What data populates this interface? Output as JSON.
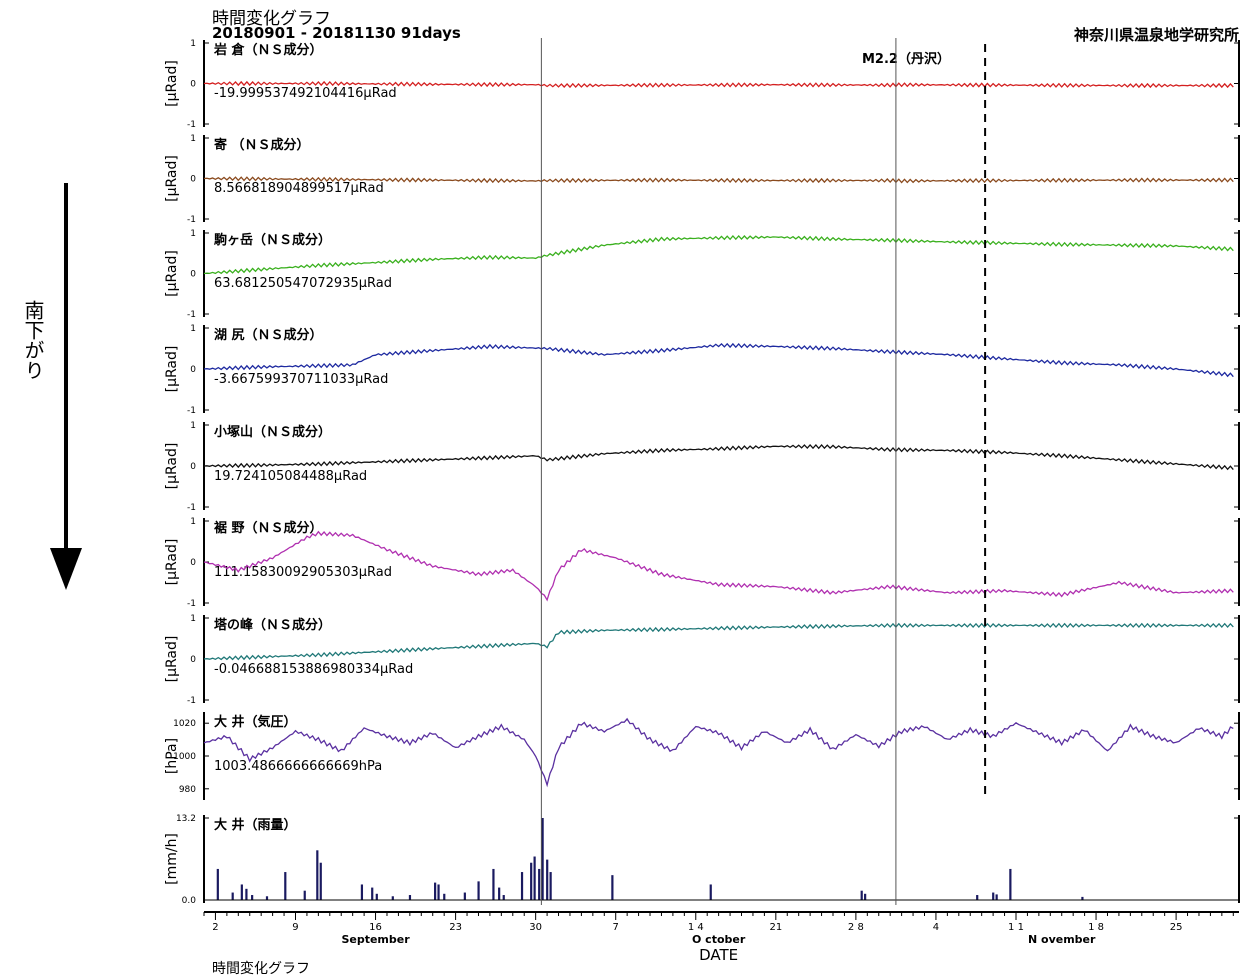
{
  "header": {
    "title": "時間変化グラフ",
    "period": "20180901 - 20181130 91days",
    "institution": "神奈川県温泉地学研究所",
    "event_label": "M2.2（丹沢）",
    "side_label": "南下がり",
    "footer_partial": "時間変化グラフ"
  },
  "chart_data": [
    {
      "type": "line",
      "title": "岩 倉（ＮＳ成分）",
      "ylabel": "[μRad]",
      "ylim": [
        -1,
        1
      ],
      "yticks": [
        "1",
        "0",
        "-1"
      ],
      "offset_label": "-19.999537492104416μRad",
      "color": "#d42020",
      "x": [
        0,
        10,
        20,
        29,
        30,
        40,
        50,
        60,
        61,
        70,
        80,
        90
      ],
      "values": [
        0,
        0,
        -0.02,
        -0.03,
        -0.05,
        -0.04,
        -0.03,
        -0.04,
        -0.03,
        -0.04,
        -0.05,
        -0.05
      ]
    },
    {
      "type": "line",
      "title": "寄 （ＮＳ成分）",
      "ylabel": "[μRad]",
      "ylim": [
        -1,
        1
      ],
      "yticks": [
        "1",
        "0",
        "-1"
      ],
      "offset_label": "8.566818904899517μRad",
      "color": "#8a4a1e",
      "x": [
        0,
        10,
        20,
        29,
        30,
        40,
        50,
        60,
        61,
        70,
        80,
        90
      ],
      "values": [
        0,
        -0.02,
        -0.04,
        -0.06,
        -0.05,
        -0.04,
        -0.05,
        -0.05,
        -0.06,
        -0.05,
        -0.04,
        -0.04
      ]
    },
    {
      "type": "line",
      "title": "駒ヶ岳（ＮＳ成分）",
      "ylabel": "[μRad]",
      "ylim": [
        -1,
        1
      ],
      "yticks": [
        "1",
        "0",
        "-1"
      ],
      "offset_label": "63.681250547072935μRad",
      "color": "#3ab01e",
      "x": [
        0,
        5,
        10,
        15,
        20,
        25,
        29,
        30,
        35,
        40,
        45,
        50,
        55,
        60,
        65,
        70,
        75,
        80,
        85,
        90
      ],
      "values": [
        0,
        0.1,
        0.2,
        0.27,
        0.35,
        0.4,
        0.38,
        0.45,
        0.7,
        0.85,
        0.88,
        0.9,
        0.85,
        0.82,
        0.78,
        0.75,
        0.72,
        0.7,
        0.68,
        0.6
      ]
    },
    {
      "type": "line",
      "title": "湖 尻（ＮＳ成分）",
      "ylabel": "[μRad]",
      "ylim": [
        -1,
        1
      ],
      "yticks": [
        "1",
        "0",
        "-1"
      ],
      "offset_label": "-3.667599370711033μRad",
      "color": "#1e2aa0",
      "x": [
        0,
        5,
        10,
        13,
        15,
        20,
        25,
        30,
        35,
        40,
        45,
        50,
        55,
        60,
        65,
        70,
        75,
        80,
        85,
        90
      ],
      "values": [
        0,
        0.05,
        0.08,
        0.1,
        0.35,
        0.45,
        0.55,
        0.5,
        0.35,
        0.45,
        0.58,
        0.55,
        0.5,
        0.42,
        0.35,
        0.25,
        0.15,
        0.1,
        0.0,
        -0.15
      ]
    },
    {
      "type": "line",
      "title": "小塚山（ＮＳ成分）",
      "ylabel": "[μRad]",
      "ylim": [
        -1,
        1
      ],
      "yticks": [
        "1",
        "0",
        "-1"
      ],
      "offset_label": "19.724105084488μRad",
      "color": "#111111",
      "x": [
        0,
        5,
        10,
        15,
        20,
        25,
        29,
        30,
        35,
        40,
        45,
        50,
        55,
        60,
        65,
        70,
        75,
        80,
        85,
        90
      ],
      "values": [
        0,
        0.02,
        0.05,
        0.1,
        0.15,
        0.2,
        0.25,
        0.15,
        0.3,
        0.38,
        0.42,
        0.48,
        0.47,
        0.4,
        0.38,
        0.33,
        0.25,
        0.15,
        0.05,
        -0.05
      ]
    },
    {
      "type": "line",
      "title": "裾 野（ＮＳ成分）",
      "ylabel": "[μRad]",
      "ylim": [
        -1,
        1
      ],
      "yticks": [
        "1",
        "0",
        "-1"
      ],
      "offset_label": "111.15830092905303μRad",
      "color": "#b030b0",
      "x": [
        0,
        3,
        6,
        9,
        10,
        13,
        16,
        20,
        24,
        27,
        29,
        30,
        31,
        33,
        36,
        40,
        45,
        50,
        55,
        60,
        65,
        70,
        75,
        80,
        85,
        90
      ],
      "values": [
        0,
        -0.2,
        0.1,
        0.6,
        0.7,
        0.65,
        0.3,
        -0.1,
        -0.3,
        -0.2,
        -0.6,
        -0.9,
        -0.2,
        0.3,
        0.1,
        -0.3,
        -0.55,
        -0.6,
        -0.75,
        -0.6,
        -0.75,
        -0.7,
        -0.8,
        -0.5,
        -0.75,
        -0.7
      ]
    },
    {
      "type": "line",
      "title": "塔の峰（ＮＳ成分）",
      "ylabel": "[μRad]",
      "ylim": [
        -1,
        1
      ],
      "yticks": [
        "1",
        "0",
        "-1"
      ],
      "offset_label": "-0.046688153886980334μRad",
      "color": "#207878",
      "x": [
        0,
        10,
        20,
        29,
        30,
        31,
        35,
        40,
        50,
        60,
        70,
        80,
        90
      ],
      "values": [
        0,
        0.1,
        0.25,
        0.38,
        0.3,
        0.65,
        0.7,
        0.72,
        0.78,
        0.82,
        0.82,
        0.82,
        0.82
      ]
    },
    {
      "type": "line",
      "title": "大 井（気圧）",
      "ylabel": "[hPa]",
      "ylim": [
        975,
        1025
      ],
      "yticks": [
        "1020",
        "1000",
        "980"
      ],
      "offset_label": "1003.4866666666669hPa",
      "color": "#5a30a0",
      "x": [
        0,
        2,
        4,
        6,
        8,
        10,
        12,
        14,
        16,
        18,
        20,
        22,
        24,
        26,
        28,
        29,
        30,
        31,
        33,
        35,
        37,
        39,
        41,
        43,
        45,
        47,
        49,
        51,
        53,
        55,
        57,
        59,
        61,
        63,
        65,
        67,
        69,
        71,
        73,
        75,
        77,
        79,
        81,
        83,
        85,
        87,
        89,
        90
      ],
      "values": [
        1008,
        1012,
        998,
        1005,
        1015,
        1010,
        1003,
        1017,
        1012,
        1008,
        1014,
        1005,
        1012,
        1018,
        1010,
        1000,
        983,
        1005,
        1020,
        1015,
        1022,
        1010,
        1003,
        1018,
        1014,
        1005,
        1015,
        1008,
        1016,
        1004,
        1013,
        1006,
        1015,
        1018,
        1010,
        1016,
        1012,
        1020,
        1014,
        1008,
        1016,
        1003,
        1018,
        1012,
        1008,
        1017,
        1012,
        1018
      ]
    },
    {
      "type": "bar",
      "title": "大 井（雨量）",
      "ylabel": "[mm/h]",
      "ylim": [
        0,
        13.2
      ],
      "yticks": [
        "13.2",
        "0.0"
      ],
      "offset_label": "",
      "color": "#1a1a60",
      "x": [
        1.2,
        2.5,
        3.3,
        3.7,
        4.2,
        5.5,
        7.1,
        8.8,
        9.9,
        10.2,
        13.8,
        14.7,
        15.1,
        16.5,
        18.0,
        20.2,
        20.5,
        21.0,
        22.8,
        24.0,
        25.3,
        25.8,
        26.2,
        27.8,
        28.6,
        28.9,
        29.3,
        29.6,
        30.0,
        30.3,
        35.7,
        44.3,
        57.5,
        57.8,
        67.6,
        69.0,
        69.3,
        70.5,
        76.8
      ],
      "values": [
        5,
        1.2,
        2.5,
        1.8,
        0.8,
        0.6,
        4.5,
        1.5,
        8,
        6,
        2.5,
        2.0,
        1.0,
        0.6,
        0.8,
        2.8,
        2.5,
        1.0,
        1.2,
        3.0,
        5.0,
        2.0,
        0.8,
        4.5,
        6.0,
        7.0,
        5.0,
        13.2,
        6.5,
        4.5,
        4.0,
        2.5,
        1.5,
        1.0,
        0.8,
        1.2,
        0.9,
        5.0,
        0.5
      ]
    }
  ],
  "xaxis": {
    "label": "DATE",
    "xlim": [
      0,
      90.5
    ],
    "ticks": [
      {
        "x": 1,
        "label": "2"
      },
      {
        "x": 8,
        "label": "9"
      },
      {
        "x": 15,
        "label": "16"
      },
      {
        "x": 22,
        "label": "23"
      },
      {
        "x": 29,
        "label": "30"
      },
      {
        "x": 36,
        "label": "7"
      },
      {
        "x": 43,
        "label": "1 4"
      },
      {
        "x": 50,
        "label": "21"
      },
      {
        "x": 57,
        "label": "2 8"
      },
      {
        "x": 64,
        "label": "4"
      },
      {
        "x": 71,
        "label": "1 1"
      },
      {
        "x": 78,
        "label": "1 8"
      },
      {
        "x": 85,
        "label": "25"
      }
    ],
    "months": [
      {
        "x": 15,
        "label": "September"
      },
      {
        "x": 45,
        "label": "O    ctober"
      },
      {
        "x": 75,
        "label": "N      ovember"
      }
    ],
    "month_boundaries": [
      29.5,
      60.5
    ],
    "event_x": 68.3
  }
}
